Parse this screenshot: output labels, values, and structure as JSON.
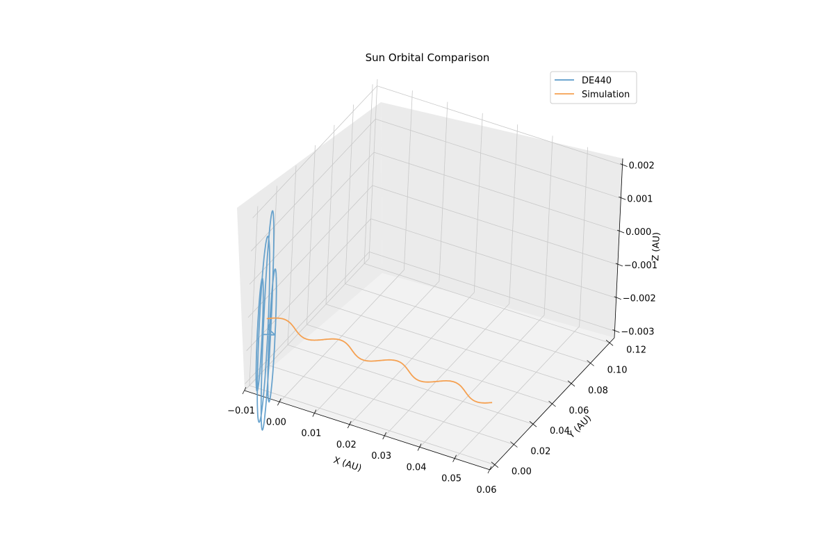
{
  "chart_data": {
    "type": "line",
    "projection": "3d",
    "title": "Sun Orbital Comparison",
    "xlabel": "X (AU)",
    "ylabel": "Y (AU)",
    "zlabel": "Z (AU)",
    "xlim": [
      -0.01,
      0.06
    ],
    "ylim": [
      -0.005,
      0.125
    ],
    "zlim": [
      -0.0032,
      0.0022
    ],
    "xticks": [
      "−0.01",
      "0.00",
      "0.01",
      "0.02",
      "0.03",
      "0.04",
      "0.05",
      "0.06"
    ],
    "yticks": [
      "0.00",
      "0.02",
      "0.04",
      "0.06",
      "0.08",
      "0.10",
      "0.12"
    ],
    "zticks": [
      "0.002",
      "0.001",
      "0.000",
      "−0.001",
      "−0.002",
      "−0.003"
    ],
    "grid": true,
    "legend_position": "top-right",
    "legend": [
      "DE440",
      "Simulation"
    ],
    "series": [
      {
        "name": "DE440",
        "color": "#5a9ac9",
        "description_points": "multiple loops near x≈-0.005, y≈0 spanning z -0.003..0.001"
      },
      {
        "name": "Simulation",
        "color": "#f5a050"
      }
    ]
  }
}
